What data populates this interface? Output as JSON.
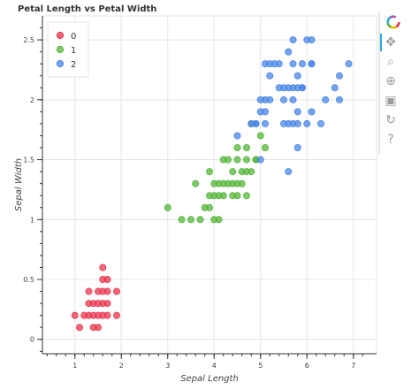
{
  "chart_data": {
    "type": "scatter",
    "title": "Petal Length vs Petal Width",
    "xlabel": "Sepal Length",
    "ylabel": "Sepal Width",
    "xlim": [
      0.3,
      7.5
    ],
    "ylim": [
      -0.12,
      2.7
    ],
    "x_ticks": [
      "1",
      "2",
      "3",
      "4",
      "5",
      "6",
      "7"
    ],
    "x_tick_values": [
      1,
      2,
      3,
      4,
      5,
      6,
      7
    ],
    "y_ticks": [
      "0",
      "0.5",
      "1",
      "1.5",
      "2",
      "2.5"
    ],
    "y_tick_values": [
      0,
      0.5,
      1,
      1.5,
      2,
      2.5
    ],
    "grid": true,
    "legend_position": "top-left",
    "series": [
      {
        "name": "0",
        "color": "#e8364f",
        "points": [
          [
            1.0,
            0.2
          ],
          [
            1.1,
            0.1
          ],
          [
            1.2,
            0.2
          ],
          [
            1.3,
            0.2
          ],
          [
            1.4,
            0.2
          ],
          [
            1.5,
            0.2
          ],
          [
            1.6,
            0.2
          ],
          [
            1.7,
            0.2
          ],
          [
            1.9,
            0.2
          ],
          [
            1.3,
            0.3
          ],
          [
            1.4,
            0.3
          ],
          [
            1.5,
            0.3
          ],
          [
            1.6,
            0.3
          ],
          [
            1.7,
            0.3
          ],
          [
            1.4,
            0.1
          ],
          [
            1.5,
            0.1
          ],
          [
            1.3,
            0.4
          ],
          [
            1.5,
            0.4
          ],
          [
            1.6,
            0.4
          ],
          [
            1.7,
            0.4
          ],
          [
            1.9,
            0.4
          ],
          [
            1.6,
            0.5
          ],
          [
            1.7,
            0.5
          ],
          [
            1.6,
            0.6
          ]
        ]
      },
      {
        "name": "1",
        "color": "#55b63a",
        "points": [
          [
            3.0,
            1.1
          ],
          [
            3.3,
            1.0
          ],
          [
            3.5,
            1.0
          ],
          [
            3.7,
            1.0
          ],
          [
            3.9,
            1.1
          ],
          [
            3.8,
            1.1
          ],
          [
            3.6,
            1.3
          ],
          [
            3.9,
            1.2
          ],
          [
            3.9,
            1.4
          ],
          [
            4.0,
            1.0
          ],
          [
            4.1,
            1.0
          ],
          [
            4.0,
            1.2
          ],
          [
            4.0,
            1.3
          ],
          [
            4.1,
            1.3
          ],
          [
            4.2,
            1.3
          ],
          [
            4.3,
            1.3
          ],
          [
            4.4,
            1.3
          ],
          [
            4.5,
            1.3
          ],
          [
            4.6,
            1.3
          ],
          [
            4.1,
            1.2
          ],
          [
            4.2,
            1.2
          ],
          [
            4.4,
            1.2
          ],
          [
            4.5,
            1.2
          ],
          [
            4.7,
            1.2
          ],
          [
            4.2,
            1.5
          ],
          [
            4.5,
            1.5
          ],
          [
            4.4,
            1.4
          ],
          [
            4.6,
            1.4
          ],
          [
            4.7,
            1.4
          ],
          [
            4.8,
            1.4
          ],
          [
            4.5,
            1.6
          ],
          [
            4.7,
            1.6
          ],
          [
            4.8,
            1.8
          ],
          [
            4.9,
            1.5
          ],
          [
            5.0,
            1.7
          ],
          [
            5.1,
            1.6
          ],
          [
            4.9,
            1.5
          ],
          [
            4.3,
            1.5
          ],
          [
            4.7,
            1.5
          ]
        ]
      },
      {
        "name": "2",
        "color": "#4a86e8",
        "points": [
          [
            4.5,
            1.7
          ],
          [
            4.8,
            1.8
          ],
          [
            4.9,
            1.8
          ],
          [
            5.0,
            1.5
          ],
          [
            5.0,
            2.0
          ],
          [
            5.1,
            1.9
          ],
          [
            5.1,
            1.8
          ],
          [
            5.1,
            2.3
          ],
          [
            5.2,
            2.3
          ],
          [
            5.3,
            2.3
          ],
          [
            5.1,
            2.0
          ],
          [
            5.2,
            2.0
          ],
          [
            5.0,
            1.9
          ],
          [
            4.9,
            1.8
          ],
          [
            5.4,
            2.3
          ],
          [
            5.5,
            2.0
          ],
          [
            5.5,
            1.8
          ],
          [
            5.6,
            2.1
          ],
          [
            5.7,
            2.1
          ],
          [
            5.8,
            2.1
          ],
          [
            5.9,
            2.1
          ],
          [
            5.6,
            1.8
          ],
          [
            5.7,
            1.8
          ],
          [
            5.6,
            2.4
          ],
          [
            5.7,
            2.5
          ],
          [
            5.8,
            2.2
          ],
          [
            5.9,
            2.3
          ],
          [
            6.0,
            2.5
          ],
          [
            6.1,
            2.5
          ],
          [
            6.1,
            2.3
          ],
          [
            6.0,
            1.8
          ],
          [
            6.1,
            1.9
          ],
          [
            6.3,
            1.8
          ],
          [
            6.4,
            2.0
          ],
          [
            6.6,
            2.1
          ],
          [
            6.7,
            2.2
          ],
          [
            6.7,
            2.0
          ],
          [
            6.9,
            2.3
          ],
          [
            5.7,
            2.3
          ],
          [
            5.6,
            1.4
          ],
          [
            5.8,
            1.6
          ],
          [
            5.8,
            1.8
          ],
          [
            6.1,
            2.3
          ],
          [
            5.9,
            2.1
          ],
          [
            5.2,
            2.2
          ],
          [
            5.4,
            2.1
          ],
          [
            5.8,
            1.9
          ],
          [
            5.5,
            2.1
          ],
          [
            5.7,
            2.0
          ]
        ]
      }
    ]
  },
  "toolbar": {
    "tools": [
      "logo-icon",
      "pan-icon",
      "box-zoom-icon",
      "wheel-zoom-icon",
      "save-icon",
      "reset-icon",
      "help-icon"
    ],
    "glyphs": [
      "",
      "✥",
      "⌕",
      "⊕",
      "▣",
      "↻",
      "?"
    ]
  }
}
